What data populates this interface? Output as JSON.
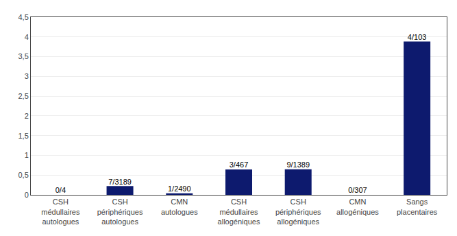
{
  "chart_data": {
    "type": "bar",
    "categories": [
      "CSH\nmédullaires\nautologues",
      "CSH\npériphériques\nautologues",
      "CMN\nautologues",
      "CSH\nmédullaires\nallogéniques",
      "CSH\npériphériques\nallogéniques",
      "CMN\nallogéniques",
      "Sangs\nplacentaires"
    ],
    "values": [
      0.0,
      0.21952,
      0.04016,
      0.6424,
      0.64794,
      0.0,
      3.8835
    ],
    "annotations": [
      "0/4",
      "7/3189",
      "1/2490",
      "3/467",
      "9/1389",
      "0/307",
      "4/103"
    ],
    "color": "#0d1a6e",
    "ylim": [
      0,
      4.5
    ],
    "yticks": [
      0,
      {
        "value": 0.5,
        "label": "0,5"
      },
      1,
      {
        "value": 1.5,
        "label": "1,5"
      },
      2,
      {
        "value": 2.5,
        "label": "2,5"
      },
      3,
      {
        "value": 3.5,
        "label": "3,5"
      },
      4,
      {
        "value": 4.5,
        "label": "4,5"
      }
    ],
    "grid": true
  }
}
